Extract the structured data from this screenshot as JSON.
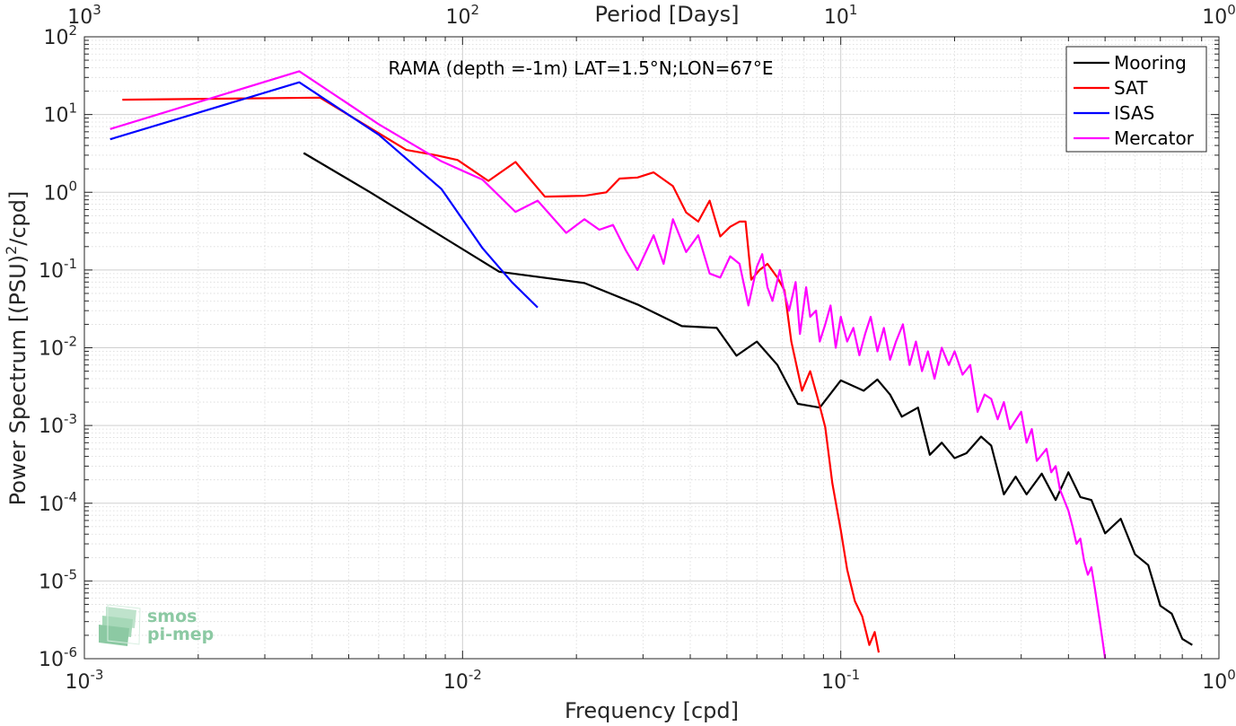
{
  "chart_data": {
    "type": "line",
    "title": "RAMA (depth =-1m) LAT=1.5°N;LON=67°E",
    "xlabel": "Frequency [cpd]",
    "ylabel": "Power Spectrum [(PSU)²/cpd]",
    "top_xlabel": "Period [Days]",
    "xscale": "log",
    "yscale": "log",
    "xlim": [
      0.001,
      1
    ],
    "ylim": [
      1e-06,
      100
    ],
    "grid": true,
    "legend_position": "top-right",
    "x_ticks": [
      {
        "value": 0.001,
        "base": "10",
        "exp": "-3"
      },
      {
        "value": 0.01,
        "base": "10",
        "exp": "-2"
      },
      {
        "value": 0.1,
        "base": "10",
        "exp": "-1"
      },
      {
        "value": 1,
        "base": "10",
        "exp": "0"
      }
    ],
    "top_x_ticks": [
      {
        "value": 0.001,
        "base": "10",
        "exp": "3"
      },
      {
        "value": 0.01,
        "base": "10",
        "exp": "2"
      },
      {
        "value": 0.1,
        "base": "10",
        "exp": "1"
      },
      {
        "value": 1,
        "base": "10",
        "exp": "0"
      }
    ],
    "y_ticks": [
      {
        "value": 1e-06,
        "base": "10",
        "exp": "-6"
      },
      {
        "value": 1e-05,
        "base": "10",
        "exp": "-5"
      },
      {
        "value": 0.0001,
        "base": "10",
        "exp": "-4"
      },
      {
        "value": 0.001,
        "base": "10",
        "exp": "-3"
      },
      {
        "value": 0.01,
        "base": "10",
        "exp": "-2"
      },
      {
        "value": 0.1,
        "base": "10",
        "exp": "-1"
      },
      {
        "value": 1,
        "base": "10",
        "exp": "0"
      },
      {
        "value": 10,
        "base": "10",
        "exp": "1"
      },
      {
        "value": 100,
        "base": "10",
        "exp": "2"
      }
    ],
    "series": [
      {
        "name": "Mooring",
        "color": "#000000",
        "points": [
          [
            0.0038,
            3.2
          ],
          [
            0.0057,
            1.0
          ],
          [
            0.0125,
            0.095
          ],
          [
            0.021,
            0.068
          ],
          [
            0.029,
            0.036
          ],
          [
            0.038,
            0.019
          ],
          [
            0.047,
            0.018
          ],
          [
            0.053,
            0.0079
          ],
          [
            0.06,
            0.012
          ],
          [
            0.068,
            0.006
          ],
          [
            0.077,
            0.0019
          ],
          [
            0.088,
            0.0017
          ],
          [
            0.1,
            0.0038
          ],
          [
            0.115,
            0.0028
          ],
          [
            0.125,
            0.0039
          ],
          [
            0.135,
            0.0025
          ],
          [
            0.145,
            0.0013
          ],
          [
            0.16,
            0.0017
          ],
          [
            0.172,
            0.00042
          ],
          [
            0.185,
            0.0006
          ],
          [
            0.2,
            0.00038
          ],
          [
            0.215,
            0.00044
          ],
          [
            0.235,
            0.00072
          ],
          [
            0.25,
            0.00055
          ],
          [
            0.27,
            0.00013
          ],
          [
            0.29,
            0.00022
          ],
          [
            0.31,
            0.00013
          ],
          [
            0.34,
            0.00024
          ],
          [
            0.37,
            0.00011
          ],
          [
            0.4,
            0.00025
          ],
          [
            0.43,
            0.00012
          ],
          [
            0.46,
            0.00011
          ],
          [
            0.5,
            4.1e-05
          ],
          [
            0.55,
            6.3e-05
          ],
          [
            0.6,
            2.2e-05
          ],
          [
            0.65,
            1.6e-05
          ],
          [
            0.7,
            4.8e-06
          ],
          [
            0.75,
            3.8e-06
          ],
          [
            0.8,
            1.8e-06
          ],
          [
            0.85,
            1.5e-06
          ]
        ]
      },
      {
        "name": "SAT",
        "color": "#ff0000",
        "points": [
          [
            0.00126,
            15.5
          ],
          [
            0.0042,
            16.5
          ],
          [
            0.0071,
            3.5
          ],
          [
            0.0085,
            3.0
          ],
          [
            0.0097,
            2.6
          ],
          [
            0.0117,
            1.4
          ],
          [
            0.0138,
            2.45
          ],
          [
            0.0165,
            0.88
          ],
          [
            0.021,
            0.9
          ],
          [
            0.024,
            1.0
          ],
          [
            0.026,
            1.5
          ],
          [
            0.029,
            1.55
          ],
          [
            0.032,
            1.8
          ],
          [
            0.036,
            1.2
          ],
          [
            0.039,
            0.55
          ],
          [
            0.042,
            0.42
          ],
          [
            0.045,
            0.78
          ],
          [
            0.048,
            0.27
          ],
          [
            0.051,
            0.36
          ],
          [
            0.054,
            0.42
          ],
          [
            0.056,
            0.42
          ],
          [
            0.058,
            0.075
          ],
          [
            0.061,
            0.1
          ],
          [
            0.064,
            0.12
          ],
          [
            0.068,
            0.08
          ],
          [
            0.071,
            0.055
          ],
          [
            0.074,
            0.012
          ],
          [
            0.079,
            0.0028
          ],
          [
            0.083,
            0.005
          ],
          [
            0.087,
            0.0022
          ],
          [
            0.091,
            0.00095
          ],
          [
            0.095,
            0.00018
          ],
          [
            0.1,
            4.5e-05
          ],
          [
            0.104,
            1.4e-05
          ],
          [
            0.109,
            5.5e-06
          ],
          [
            0.114,
            3.5e-06
          ],
          [
            0.119,
            1.5e-06
          ],
          [
            0.123,
            2.2e-06
          ],
          [
            0.126,
            1.2e-06
          ]
        ]
      },
      {
        "name": "ISAS",
        "color": "#0000ff",
        "points": [
          [
            0.00117,
            4.8
          ],
          [
            0.0037,
            26.0
          ],
          [
            0.006,
            5.5
          ],
          [
            0.0088,
            1.1
          ],
          [
            0.0113,
            0.19
          ],
          [
            0.0135,
            0.07
          ],
          [
            0.0158,
            0.033
          ]
        ]
      },
      {
        "name": "Mercator",
        "color": "#ff00ff",
        "points": [
          [
            0.00117,
            6.5
          ],
          [
            0.0037,
            36.0
          ],
          [
            0.006,
            7.5
          ],
          [
            0.0088,
            2.5
          ],
          [
            0.0113,
            1.45
          ],
          [
            0.0138,
            0.56
          ],
          [
            0.0158,
            0.78
          ],
          [
            0.0188,
            0.3
          ],
          [
            0.021,
            0.45
          ],
          [
            0.023,
            0.33
          ],
          [
            0.025,
            0.38
          ],
          [
            0.027,
            0.18
          ],
          [
            0.029,
            0.1
          ],
          [
            0.032,
            0.28
          ],
          [
            0.034,
            0.12
          ],
          [
            0.036,
            0.45
          ],
          [
            0.039,
            0.17
          ],
          [
            0.042,
            0.28
          ],
          [
            0.045,
            0.09
          ],
          [
            0.048,
            0.08
          ],
          [
            0.051,
            0.15
          ],
          [
            0.054,
            0.12
          ],
          [
            0.057,
            0.035
          ],
          [
            0.06,
            0.11
          ],
          [
            0.062,
            0.16
          ],
          [
            0.064,
            0.06
          ],
          [
            0.066,
            0.04
          ],
          [
            0.069,
            0.1
          ],
          [
            0.071,
            0.05
          ],
          [
            0.073,
            0.03
          ],
          [
            0.076,
            0.07
          ],
          [
            0.078,
            0.015
          ],
          [
            0.081,
            0.06
          ],
          [
            0.083,
            0.025
          ],
          [
            0.086,
            0.03
          ],
          [
            0.088,
            0.012
          ],
          [
            0.091,
            0.02
          ],
          [
            0.094,
            0.035
          ],
          [
            0.097,
            0.01
          ],
          [
            0.1,
            0.025
          ],
          [
            0.104,
            0.012
          ],
          [
            0.108,
            0.018
          ],
          [
            0.112,
            0.008
          ],
          [
            0.116,
            0.015
          ],
          [
            0.12,
            0.025
          ],
          [
            0.125,
            0.009
          ],
          [
            0.13,
            0.018
          ],
          [
            0.135,
            0.007
          ],
          [
            0.14,
            0.012
          ],
          [
            0.146,
            0.02
          ],
          [
            0.152,
            0.006
          ],
          [
            0.158,
            0.012
          ],
          [
            0.164,
            0.005
          ],
          [
            0.17,
            0.009
          ],
          [
            0.177,
            0.004
          ],
          [
            0.185,
            0.01
          ],
          [
            0.193,
            0.006
          ],
          [
            0.2,
            0.009
          ],
          [
            0.21,
            0.0045
          ],
          [
            0.22,
            0.006
          ],
          [
            0.23,
            0.0015
          ],
          [
            0.24,
            0.0025
          ],
          [
            0.25,
            0.0022
          ],
          [
            0.26,
            0.0012
          ],
          [
            0.27,
            0.002
          ],
          [
            0.28,
            0.0009
          ],
          [
            0.3,
            0.0015
          ],
          [
            0.31,
            0.0006
          ],
          [
            0.32,
            0.0009
          ],
          [
            0.33,
            0.00035
          ],
          [
            0.35,
            0.0005
          ],
          [
            0.36,
            0.00025
          ],
          [
            0.37,
            0.0003
          ],
          [
            0.38,
            0.00015
          ],
          [
            0.4,
            8e-05
          ],
          [
            0.41,
            5e-05
          ],
          [
            0.42,
            3e-05
          ],
          [
            0.43,
            3.5e-05
          ],
          [
            0.44,
            1.8e-05
          ],
          [
            0.45,
            1.2e-05
          ],
          [
            0.46,
            1.5e-05
          ],
          [
            0.47,
            8e-06
          ],
          [
            0.48,
            4e-06
          ],
          [
            0.49,
            2e-06
          ],
          [
            0.5,
            1e-06
          ]
        ]
      }
    ]
  },
  "logo": {
    "line1": "smos",
    "line2": "pi-mep"
  }
}
